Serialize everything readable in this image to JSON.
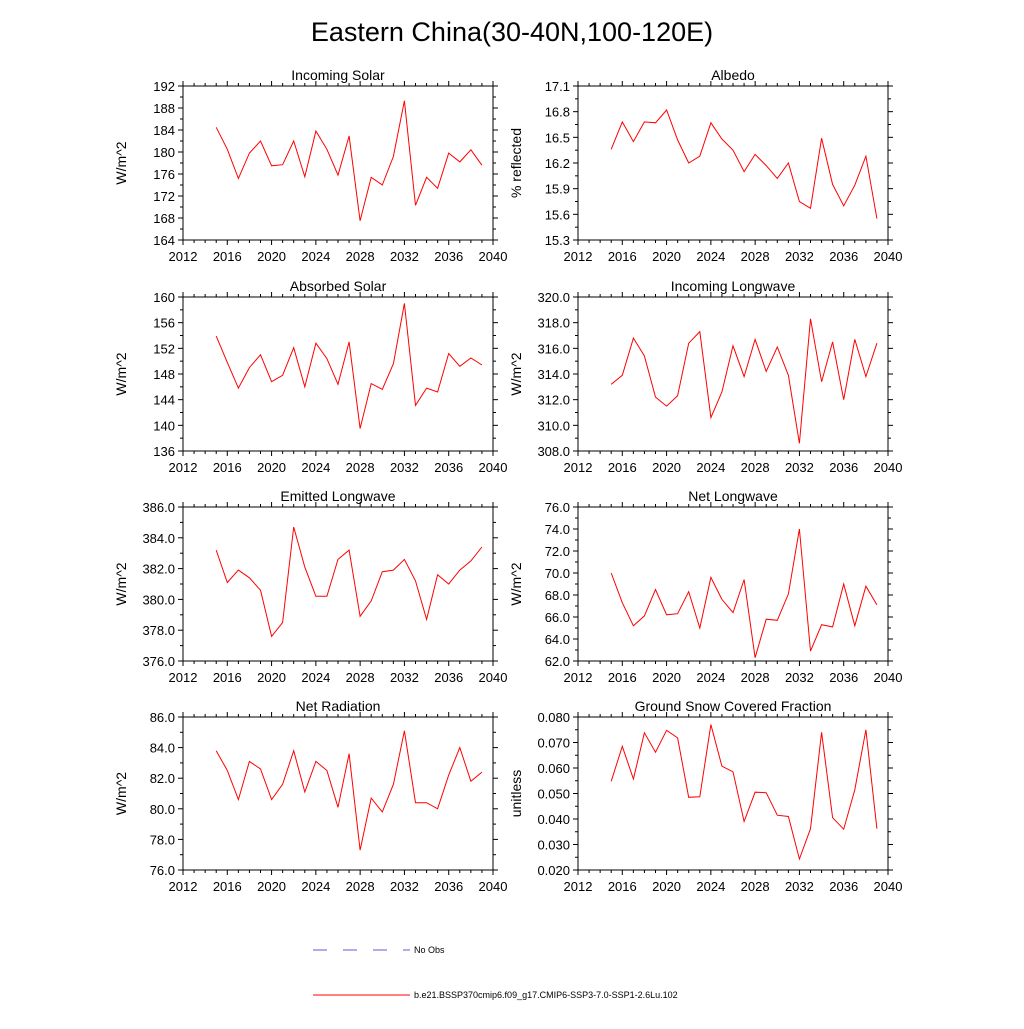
{
  "title": "Eastern China(30-40N,100-120E)",
  "legend": {
    "no_obs_label": "No Obs",
    "no_obs_color": "#5b5bd6",
    "model_label": "b.e21.BSSP370cmip6.f09_g17.CMIP6-SSP3-7.0-SSP1-2.6Lu.102",
    "model_color": "#ff0000"
  },
  "chart_data": [
    {
      "type": "line",
      "title": "Incoming Solar",
      "ylabel": "W/m^2",
      "xlim": [
        2012,
        2040
      ],
      "xticks": [
        2012,
        2016,
        2020,
        2024,
        2028,
        2032,
        2036,
        2040
      ],
      "ylim": [
        164,
        192
      ],
      "yticks": [
        164,
        168,
        172,
        176,
        180,
        184,
        188,
        192
      ],
      "ytick_labels": [
        "164",
        "168",
        "172",
        "176",
        "180",
        "184",
        "188",
        "192"
      ],
      "x": [
        2015,
        2016,
        2017,
        2018,
        2019,
        2020,
        2021,
        2022,
        2023,
        2024,
        2025,
        2026,
        2027,
        2028,
        2029,
        2030,
        2031,
        2032,
        2033,
        2034,
        2035,
        2036,
        2037,
        2038,
        2039
      ],
      "series": [
        {
          "values": [
            184.5,
            180.5,
            175.2,
            179.8,
            182.0,
            177.5,
            177.7,
            182.0,
            175.5,
            183.8,
            180.5,
            175.8,
            182.9,
            167.5,
            175.4,
            174.0,
            179.2,
            189.3,
            170.3,
            175.4,
            173.4,
            179.8,
            178.2,
            180.4,
            177.6
          ]
        }
      ]
    },
    {
      "type": "line",
      "title": "Albedo",
      "ylabel": "% reflected",
      "xlim": [
        2012,
        2040
      ],
      "xticks": [
        2012,
        2016,
        2020,
        2024,
        2028,
        2032,
        2036,
        2040
      ],
      "ylim": [
        15.3,
        17.1
      ],
      "yticks": [
        15.3,
        15.6,
        15.9,
        16.2,
        16.5,
        16.8,
        17.1
      ],
      "ytick_labels": [
        "15.3",
        "15.6",
        "15.9",
        "16.2",
        "16.5",
        "16.8",
        "17.1"
      ],
      "x": [
        2015,
        2016,
        2017,
        2018,
        2019,
        2020,
        2021,
        2022,
        2023,
        2024,
        2025,
        2026,
        2027,
        2028,
        2029,
        2030,
        2031,
        2032,
        2033,
        2034,
        2035,
        2036,
        2037,
        2038,
        2039
      ],
      "series": [
        {
          "values": [
            16.36,
            16.68,
            16.45,
            16.68,
            16.67,
            16.82,
            16.47,
            16.2,
            16.28,
            16.67,
            16.48,
            16.35,
            16.1,
            16.3,
            16.17,
            16.02,
            16.2,
            15.75,
            15.67,
            16.49,
            15.95,
            15.7,
            15.94,
            16.28,
            15.55
          ]
        }
      ]
    },
    {
      "type": "line",
      "title": "Absorbed Solar",
      "ylabel": "W/m^2",
      "xlim": [
        2012,
        2040
      ],
      "xticks": [
        2012,
        2016,
        2020,
        2024,
        2028,
        2032,
        2036,
        2040
      ],
      "ylim": [
        136,
        160
      ],
      "yticks": [
        136,
        140,
        144,
        148,
        152,
        156,
        160
      ],
      "ytick_labels": [
        "136",
        "140",
        "144",
        "148",
        "152",
        "156",
        "160"
      ],
      "x": [
        2015,
        2016,
        2017,
        2018,
        2019,
        2020,
        2021,
        2022,
        2023,
        2024,
        2025,
        2026,
        2027,
        2028,
        2029,
        2030,
        2031,
        2032,
        2033,
        2034,
        2035,
        2036,
        2037,
        2038,
        2039
      ],
      "series": [
        {
          "values": [
            153.9,
            149.8,
            145.8,
            149.0,
            151.0,
            146.8,
            147.8,
            152.1,
            146.0,
            152.8,
            150.4,
            146.4,
            153.0,
            139.5,
            146.5,
            145.6,
            149.6,
            159.0,
            143.1,
            145.8,
            145.2,
            151.2,
            149.2,
            150.5,
            149.4
          ]
        }
      ]
    },
    {
      "type": "line",
      "title": "Incoming Longwave",
      "ylabel": "W/m^2",
      "xlim": [
        2012,
        2040
      ],
      "xticks": [
        2012,
        2016,
        2020,
        2024,
        2028,
        2032,
        2036,
        2040
      ],
      "ylim": [
        308.0,
        320.0
      ],
      "yticks": [
        308.0,
        310.0,
        312.0,
        314.0,
        316.0,
        318.0,
        320.0
      ],
      "ytick_labels": [
        "308.0",
        "310.0",
        "312.0",
        "314.0",
        "316.0",
        "318.0",
        "320.0"
      ],
      "x": [
        2015,
        2016,
        2017,
        2018,
        2019,
        2020,
        2021,
        2022,
        2023,
        2024,
        2025,
        2026,
        2027,
        2028,
        2029,
        2030,
        2031,
        2032,
        2033,
        2034,
        2035,
        2036,
        2037,
        2038,
        2039
      ],
      "series": [
        {
          "values": [
            313.2,
            313.9,
            316.8,
            315.4,
            312.2,
            311.5,
            312.3,
            316.4,
            317.3,
            310.6,
            312.6,
            316.2,
            313.8,
            316.7,
            314.2,
            316.1,
            313.9,
            308.6,
            318.3,
            313.4,
            316.5,
            312.0,
            316.7,
            313.8,
            316.4
          ]
        }
      ]
    },
    {
      "type": "line",
      "title": "Emitted Longwave",
      "ylabel": "W/m^2",
      "xlim": [
        2012,
        2040
      ],
      "xticks": [
        2012,
        2016,
        2020,
        2024,
        2028,
        2032,
        2036,
        2040
      ],
      "ylim": [
        376.0,
        386.0
      ],
      "yticks": [
        376.0,
        378.0,
        380.0,
        382.0,
        384.0,
        386.0
      ],
      "ytick_labels": [
        "376.0",
        "378.0",
        "380.0",
        "382.0",
        "384.0",
        "386.0"
      ],
      "x": [
        2015,
        2016,
        2017,
        2018,
        2019,
        2020,
        2021,
        2022,
        2023,
        2024,
        2025,
        2026,
        2027,
        2028,
        2029,
        2030,
        2031,
        2032,
        2033,
        2034,
        2035,
        2036,
        2037,
        2038,
        2039
      ],
      "series": [
        {
          "values": [
            383.2,
            381.1,
            381.9,
            381.4,
            380.6,
            377.6,
            378.5,
            384.7,
            382.1,
            380.2,
            380.2,
            382.6,
            383.2,
            378.9,
            379.9,
            381.8,
            381.9,
            382.6,
            381.2,
            378.7,
            381.6,
            381.0,
            381.9,
            382.5,
            383.4
          ]
        }
      ]
    },
    {
      "type": "line",
      "title": "Net Longwave",
      "ylabel": "W/m^2",
      "xlim": [
        2012,
        2040
      ],
      "xticks": [
        2012,
        2016,
        2020,
        2024,
        2028,
        2032,
        2036,
        2040
      ],
      "ylim": [
        62.0,
        76.0
      ],
      "yticks": [
        62.0,
        64.0,
        66.0,
        68.0,
        70.0,
        72.0,
        74.0,
        76.0
      ],
      "ytick_labels": [
        "62.0",
        "64.0",
        "66.0",
        "68.0",
        "70.0",
        "72.0",
        "74.0",
        "76.0"
      ],
      "x": [
        2015,
        2016,
        2017,
        2018,
        2019,
        2020,
        2021,
        2022,
        2023,
        2024,
        2025,
        2026,
        2027,
        2028,
        2029,
        2030,
        2031,
        2032,
        2033,
        2034,
        2035,
        2036,
        2037,
        2038,
        2039
      ],
      "series": [
        {
          "values": [
            70.0,
            67.3,
            65.2,
            66.1,
            68.5,
            66.2,
            66.3,
            68.3,
            65.0,
            69.6,
            67.6,
            66.4,
            69.4,
            62.3,
            65.8,
            65.7,
            68.1,
            74.0,
            62.9,
            65.3,
            65.1,
            69.0,
            65.2,
            68.8,
            67.1
          ]
        }
      ]
    },
    {
      "type": "line",
      "title": "Net Radiation",
      "ylabel": "W/m^2",
      "xlim": [
        2012,
        2040
      ],
      "xticks": [
        2012,
        2016,
        2020,
        2024,
        2028,
        2032,
        2036,
        2040
      ],
      "ylim": [
        76.0,
        86.0
      ],
      "yticks": [
        76.0,
        78.0,
        80.0,
        82.0,
        84.0,
        86.0
      ],
      "ytick_labels": [
        "76.0",
        "78.0",
        "80.0",
        "82.0",
        "84.0",
        "86.0"
      ],
      "x": [
        2015,
        2016,
        2017,
        2018,
        2019,
        2020,
        2021,
        2022,
        2023,
        2024,
        2025,
        2026,
        2027,
        2028,
        2029,
        2030,
        2031,
        2032,
        2033,
        2034,
        2035,
        2036,
        2037,
        2038,
        2039
      ],
      "series": [
        {
          "values": [
            83.8,
            82.5,
            80.6,
            83.1,
            82.6,
            80.6,
            81.6,
            83.8,
            81.1,
            83.1,
            82.5,
            80.1,
            83.6,
            77.3,
            80.7,
            79.8,
            81.6,
            85.1,
            80.4,
            80.4,
            80.0,
            82.2,
            84.0,
            81.8,
            82.4
          ]
        }
      ]
    },
    {
      "type": "line",
      "title": "Ground Snow Covered Fraction",
      "ylabel": "unitless",
      "xlim": [
        2012,
        2040
      ],
      "xticks": [
        2012,
        2016,
        2020,
        2024,
        2028,
        2032,
        2036,
        2040
      ],
      "ylim": [
        0.02,
        0.08
      ],
      "yticks": [
        0.02,
        0.03,
        0.04,
        0.05,
        0.06,
        0.07,
        0.08
      ],
      "ytick_labels": [
        "0.020",
        "0.030",
        "0.040",
        "0.050",
        "0.060",
        "0.070",
        "0.080"
      ],
      "x": [
        2015,
        2016,
        2017,
        2018,
        2019,
        2020,
        2021,
        2022,
        2023,
        2024,
        2025,
        2026,
        2027,
        2028,
        2029,
        2030,
        2031,
        2032,
        2033,
        2034,
        2035,
        2036,
        2037,
        2038,
        2039
      ],
      "series": [
        {
          "values": [
            0.0548,
            0.0685,
            0.0557,
            0.0738,
            0.0662,
            0.0748,
            0.0718,
            0.0485,
            0.0487,
            0.077,
            0.0607,
            0.0585,
            0.039,
            0.0505,
            0.0503,
            0.0415,
            0.041,
            0.0243,
            0.0362,
            0.074,
            0.0405,
            0.036,
            0.0515,
            0.075,
            0.0362
          ]
        }
      ]
    }
  ]
}
